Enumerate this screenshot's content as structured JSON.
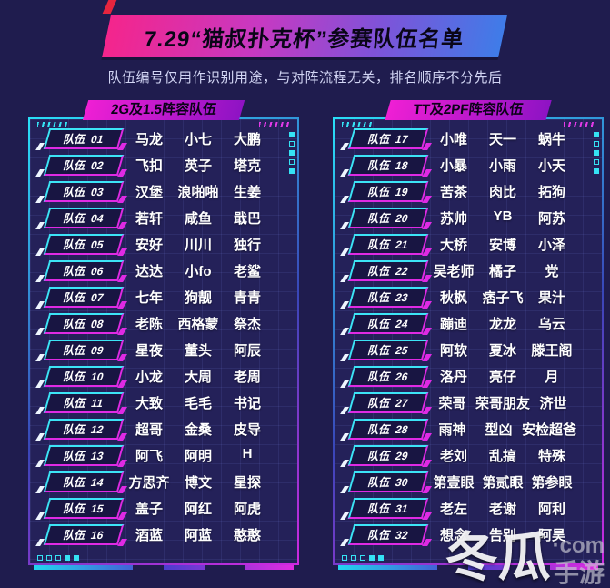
{
  "title": "7.29“猫叔扑克杯”参赛队伍名单",
  "subtitle": "队伍编号仅用作识别用途，与对阵流程无关，排名顺序不分先后",
  "badge_prefix": "队伍",
  "panels": [
    {
      "header": "2G及1.5阵容队伍",
      "teams": [
        {
          "number": "01",
          "members": [
            "马龙",
            "小七",
            "大鹏"
          ]
        },
        {
          "number": "02",
          "members": [
            "飞扣",
            "英子",
            "塔克"
          ]
        },
        {
          "number": "03",
          "members": [
            "汉堡",
            "浪啪啪",
            "生姜"
          ]
        },
        {
          "number": "04",
          "members": [
            "若轩",
            "咸鱼",
            "戢巴"
          ]
        },
        {
          "number": "05",
          "members": [
            "安好",
            "川川",
            "独行"
          ]
        },
        {
          "number": "06",
          "members": [
            "达达",
            "小fo",
            "老鲨"
          ]
        },
        {
          "number": "07",
          "members": [
            "七年",
            "狗靓",
            "青青"
          ]
        },
        {
          "number": "08",
          "members": [
            "老陈",
            "西格蒙",
            "祭杰"
          ]
        },
        {
          "number": "09",
          "members": [
            "星夜",
            "董头",
            "阿辰"
          ]
        },
        {
          "number": "10",
          "members": [
            "小龙",
            "大周",
            "老周"
          ]
        },
        {
          "number": "11",
          "members": [
            "大致",
            "毛毛",
            "书记"
          ]
        },
        {
          "number": "12",
          "members": [
            "超哥",
            "金桑",
            "皮导"
          ]
        },
        {
          "number": "13",
          "members": [
            "阿飞",
            "阿明",
            "H"
          ]
        },
        {
          "number": "14",
          "members": [
            "方思齐",
            "博文",
            "星探"
          ]
        },
        {
          "number": "15",
          "members": [
            "盖子",
            "阿红",
            "阿虎"
          ]
        },
        {
          "number": "16",
          "members": [
            "酒蓝",
            "阿蓝",
            "憨憨"
          ]
        }
      ]
    },
    {
      "header": "TT及2PF阵容队伍",
      "teams": [
        {
          "number": "17",
          "members": [
            "小唯",
            "天一",
            "蜗牛"
          ]
        },
        {
          "number": "18",
          "members": [
            "小暴",
            "小雨",
            "小天"
          ]
        },
        {
          "number": "19",
          "members": [
            "苦茶",
            "肉比",
            "拓狗"
          ]
        },
        {
          "number": "20",
          "members": [
            "苏帅",
            "YB",
            "阿苏"
          ]
        },
        {
          "number": "21",
          "members": [
            "大桥",
            "安博",
            "小泽"
          ]
        },
        {
          "number": "22",
          "members": [
            "吴老师",
            "橘子",
            "党"
          ]
        },
        {
          "number": "23",
          "members": [
            "秋枫",
            "痞子飞",
            "果汁"
          ]
        },
        {
          "number": "24",
          "members": [
            "蹦迪",
            "龙龙",
            "乌云"
          ]
        },
        {
          "number": "25",
          "members": [
            "阿软",
            "夏冰",
            "滕王阁"
          ]
        },
        {
          "number": "26",
          "members": [
            "洛丹",
            "亮仔",
            "月"
          ]
        },
        {
          "number": "27",
          "members": [
            "荣哥",
            "荣哥朋友",
            "济世"
          ]
        },
        {
          "number": "28",
          "members": [
            "雨神",
            "型凶",
            "安检超爸"
          ]
        },
        {
          "number": "29",
          "members": [
            "老刘",
            "乱搞",
            "特殊"
          ]
        },
        {
          "number": "30",
          "members": [
            "第壹眼",
            "第贰眼",
            "第参眼"
          ]
        },
        {
          "number": "31",
          "members": [
            "老左",
            "老谢",
            "阿利"
          ]
        },
        {
          "number": "32",
          "members": [
            "想念",
            "告别",
            "阿昊"
          ]
        }
      ]
    }
  ],
  "watermark": {
    "main": "冬瓜",
    "com": "·com",
    "sub": "手游"
  },
  "colors": {
    "background": "#1f1c4e",
    "panel": "#242159",
    "cyan": "#35e2f4",
    "magenta": "#df2ae4",
    "banner_pink": "#f4258c",
    "banner_blue": "#3f7ce8",
    "tab_magenta": "#ef1fd4",
    "red_accent": "#e6253e"
  }
}
